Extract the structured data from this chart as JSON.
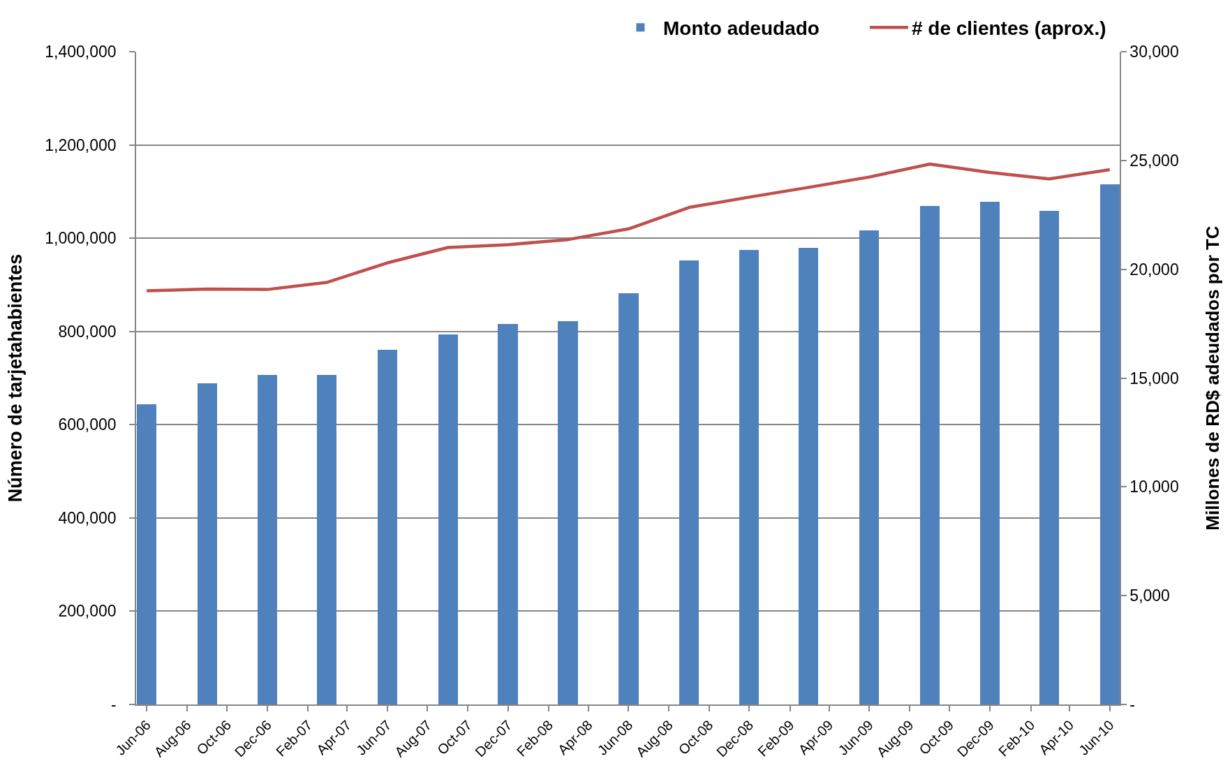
{
  "chart_data": {
    "type": "bar",
    "x": [
      "2006-06",
      "2006-09",
      "2006-12",
      "2007-03",
      "2007-06",
      "2007-09",
      "2007-12",
      "2008-03",
      "2008-06",
      "2008-09",
      "2008-12",
      "2009-03",
      "2009-06",
      "2009-09",
      "2009-12",
      "2010-03",
      "2010-06"
    ],
    "series": [
      {
        "name": "Monto adeudado",
        "axis": "y2",
        "color": "#4f81bd",
        "values": [
          13800,
          14750,
          15150,
          15150,
          16300,
          17000,
          17500,
          17600,
          18900,
          20400,
          20900,
          21000,
          21800,
          22900,
          23100,
          22700,
          23900
        ]
      },
      {
        "name": "# de clientes (aprox.)",
        "type": "line",
        "color": "#c0504d",
        "values": [
          887000,
          891000,
          890000,
          905000,
          947000,
          980000,
          986000,
          997000,
          1020000,
          1066000,
          1088000,
          1109000,
          1131000,
          1159000,
          1141000,
          1127000,
          1147000
        ]
      }
    ],
    "ylabel": "Número de tarjetahabientes",
    "y2label": "Millones de RD$ adeudados por TC",
    "xlim": [
      "2006-05-16",
      "2010-06-16"
    ],
    "xticks": [
      {
        "value": "2006-06",
        "label": "Jun-06"
      },
      {
        "value": "2006-08",
        "label": "Aug-06"
      },
      {
        "value": "2006-10",
        "label": "Oct-06"
      },
      {
        "value": "2006-12",
        "label": "Dec-06"
      },
      {
        "value": "2007-02",
        "label": "Feb-07"
      },
      {
        "value": "2007-04",
        "label": "Apr-07"
      },
      {
        "value": "2007-06",
        "label": "Jun-07"
      },
      {
        "value": "2007-08",
        "label": "Aug-07"
      },
      {
        "value": "2007-10",
        "label": "Oct-07"
      },
      {
        "value": "2007-12",
        "label": "Dec-07"
      },
      {
        "value": "2008-02",
        "label": "Feb-08"
      },
      {
        "value": "2008-04",
        "label": "Apr-08"
      },
      {
        "value": "2008-06",
        "label": "Jun-08"
      },
      {
        "value": "2008-08",
        "label": "Aug-08"
      },
      {
        "value": "2008-10",
        "label": "Oct-08"
      },
      {
        "value": "2008-12",
        "label": "Dec-08"
      },
      {
        "value": "2009-02",
        "label": "Feb-09"
      },
      {
        "value": "2009-04",
        "label": "Apr-09"
      },
      {
        "value": "2009-06",
        "label": "Jun-09"
      },
      {
        "value": "2009-08",
        "label": "Aug-09"
      },
      {
        "value": "2009-10",
        "label": "Oct-09"
      },
      {
        "value": "2009-12",
        "label": "Dec-09"
      },
      {
        "value": "2010-02",
        "label": "Feb-10"
      },
      {
        "value": "2010-04",
        "label": "Apr-10"
      },
      {
        "value": "2010-06",
        "label": "Jun-10"
      }
    ],
    "ylim": [
      0,
      1400000
    ],
    "yticks": [
      {
        "value": 0,
        "label": "-"
      },
      {
        "value": 200000,
        "label": "200,000"
      },
      {
        "value": 400000,
        "label": "400,000"
      },
      {
        "value": 600000,
        "label": "600,000"
      },
      {
        "value": 800000,
        "label": "800,000"
      },
      {
        "value": 1000000,
        "label": "1,000,000"
      },
      {
        "value": 1200000,
        "label": "1,200,000"
      },
      {
        "value": 1400000,
        "label": "1,400,000"
      }
    ],
    "y2lim": [
      0,
      30000
    ],
    "y2ticks": [
      {
        "value": 0,
        "label": "-"
      },
      {
        "value": 5000,
        "label": "5,000"
      },
      {
        "value": 10000,
        "label": "10,000"
      },
      {
        "value": 15000,
        "label": "15,000"
      },
      {
        "value": 20000,
        "label": "20,000"
      },
      {
        "value": 25000,
        "label": "25,000"
      },
      {
        "value": 30000,
        "label": "30,000"
      }
    ],
    "grid": "y",
    "legend": "top right"
  }
}
